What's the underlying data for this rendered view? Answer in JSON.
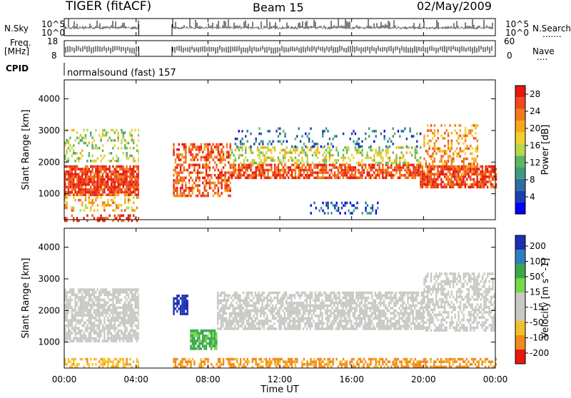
{
  "header": {
    "radar": "TIGER (fitACF)",
    "beam": "Beam 15",
    "date": "02/May/2009"
  },
  "panels": {
    "nsky_label": "N.Sky",
    "nsearch_label": "N.Search",
    "freq_label_1": "Freq.",
    "freq_label_2": "[MHz]",
    "nave_label": "Nave",
    "cpid_label": "CPID",
    "cpid_text": "normalsound (fast) 157",
    "noise_ticks_left": [
      "10^5",
      "10^0"
    ],
    "noise_ticks_right": [
      "10^5",
      "10^0"
    ],
    "freq_ticks": [
      "18",
      "8"
    ],
    "nave_ticks": [
      "60",
      "0"
    ]
  },
  "chart_data": [
    {
      "type": "heatmap",
      "title": "Power",
      "ylabel": "Slant Range [km]",
      "xlabel": "",
      "xlim": [
        "00:00",
        "24:00"
      ],
      "ylim": [
        180,
        4600
      ],
      "yticks": [
        "1000",
        "2000",
        "3000",
        "4000"
      ],
      "colorbar_label": "Power [dB]",
      "colorbar_ticks": [
        "4",
        "8",
        "12",
        "16",
        "20",
        "24",
        "28"
      ],
      "colorbar_range": [
        0,
        30
      ],
      "data_gaps": [
        [
          "04:10",
          "06:00"
        ]
      ],
      "bands": [
        {
          "t0": 0.0,
          "t1": 4.15,
          "r0": 1000,
          "r1": 1900,
          "value": 27,
          "density": 0.85
        },
        {
          "t0": 0.0,
          "t1": 4.15,
          "r0": 500,
          "r1": 1000,
          "value": 20,
          "density": 0.35
        },
        {
          "t0": 0.0,
          "t1": 4.15,
          "r0": 2000,
          "r1": 3050,
          "value": 15,
          "density": 0.3
        },
        {
          "t0": 0.0,
          "t1": 4.15,
          "r0": 180,
          "r1": 350,
          "value": 28,
          "density": 0.45
        },
        {
          "t0": 6.05,
          "t1": 9.2,
          "r0": 900,
          "r1": 2600,
          "value": 25,
          "density": 0.55
        },
        {
          "t0": 9.2,
          "t1": 19.8,
          "r0": 1500,
          "r1": 1950,
          "value": 26,
          "density": 0.75
        },
        {
          "t0": 9.2,
          "t1": 19.8,
          "r0": 1950,
          "r1": 2500,
          "value": 16,
          "density": 0.4
        },
        {
          "t0": 9.2,
          "t1": 19.8,
          "r0": 2500,
          "r1": 3100,
          "value": 7,
          "density": 0.15
        },
        {
          "t0": 13.5,
          "t1": 17.5,
          "r0": 400,
          "r1": 750,
          "value": 5,
          "density": 0.3
        },
        {
          "t0": 19.8,
          "t1": 24.0,
          "r0": 1200,
          "r1": 1900,
          "value": 26,
          "density": 0.8
        },
        {
          "t0": 20.0,
          "t1": 23.0,
          "r0": 1900,
          "r1": 3200,
          "value": 22,
          "density": 0.35
        }
      ]
    },
    {
      "type": "heatmap",
      "title": "Velocity",
      "ylabel": "Slant Range [km]",
      "xlabel": "Time UT",
      "xticks": [
        "00:00",
        "04:00",
        "08:00",
        "12:00",
        "16:00",
        "20:00",
        "00:00"
      ],
      "xlim": [
        "00:00",
        "24:00"
      ],
      "ylim": [
        180,
        4600
      ],
      "yticks": [
        "1000",
        "2000",
        "3000",
        "4000"
      ],
      "colorbar_label": "Velocity [m s^-1]",
      "colorbar_ticks": [
        "200",
        "100",
        "50",
        "15",
        "-15",
        "-50",
        "-100",
        "-200"
      ],
      "data_gaps": [
        [
          "04:10",
          "06:00"
        ]
      ],
      "bands": [
        {
          "t0": 0.0,
          "t1": 4.15,
          "r0": 1000,
          "r1": 2700,
          "value": 0,
          "density": 0.75
        },
        {
          "t0": 0.0,
          "t1": 4.15,
          "r0": 180,
          "r1": 500,
          "value": -40,
          "density": 0.45
        },
        {
          "t0": 6.05,
          "t1": 6.9,
          "r0": 1900,
          "r1": 2500,
          "value": 180,
          "density": 0.8
        },
        {
          "t0": 7.0,
          "t1": 8.5,
          "r0": 800,
          "r1": 1400,
          "value": 40,
          "density": 0.85
        },
        {
          "t0": 8.5,
          "t1": 20.0,
          "r0": 1400,
          "r1": 2600,
          "value": 0,
          "density": 0.7
        },
        {
          "t0": 6.05,
          "t1": 24.0,
          "r0": 180,
          "r1": 500,
          "value": -60,
          "density": 0.6
        },
        {
          "t0": 20.0,
          "t1": 24.0,
          "r0": 1400,
          "r1": 3200,
          "value": 0,
          "density": 0.55
        }
      ]
    }
  ]
}
